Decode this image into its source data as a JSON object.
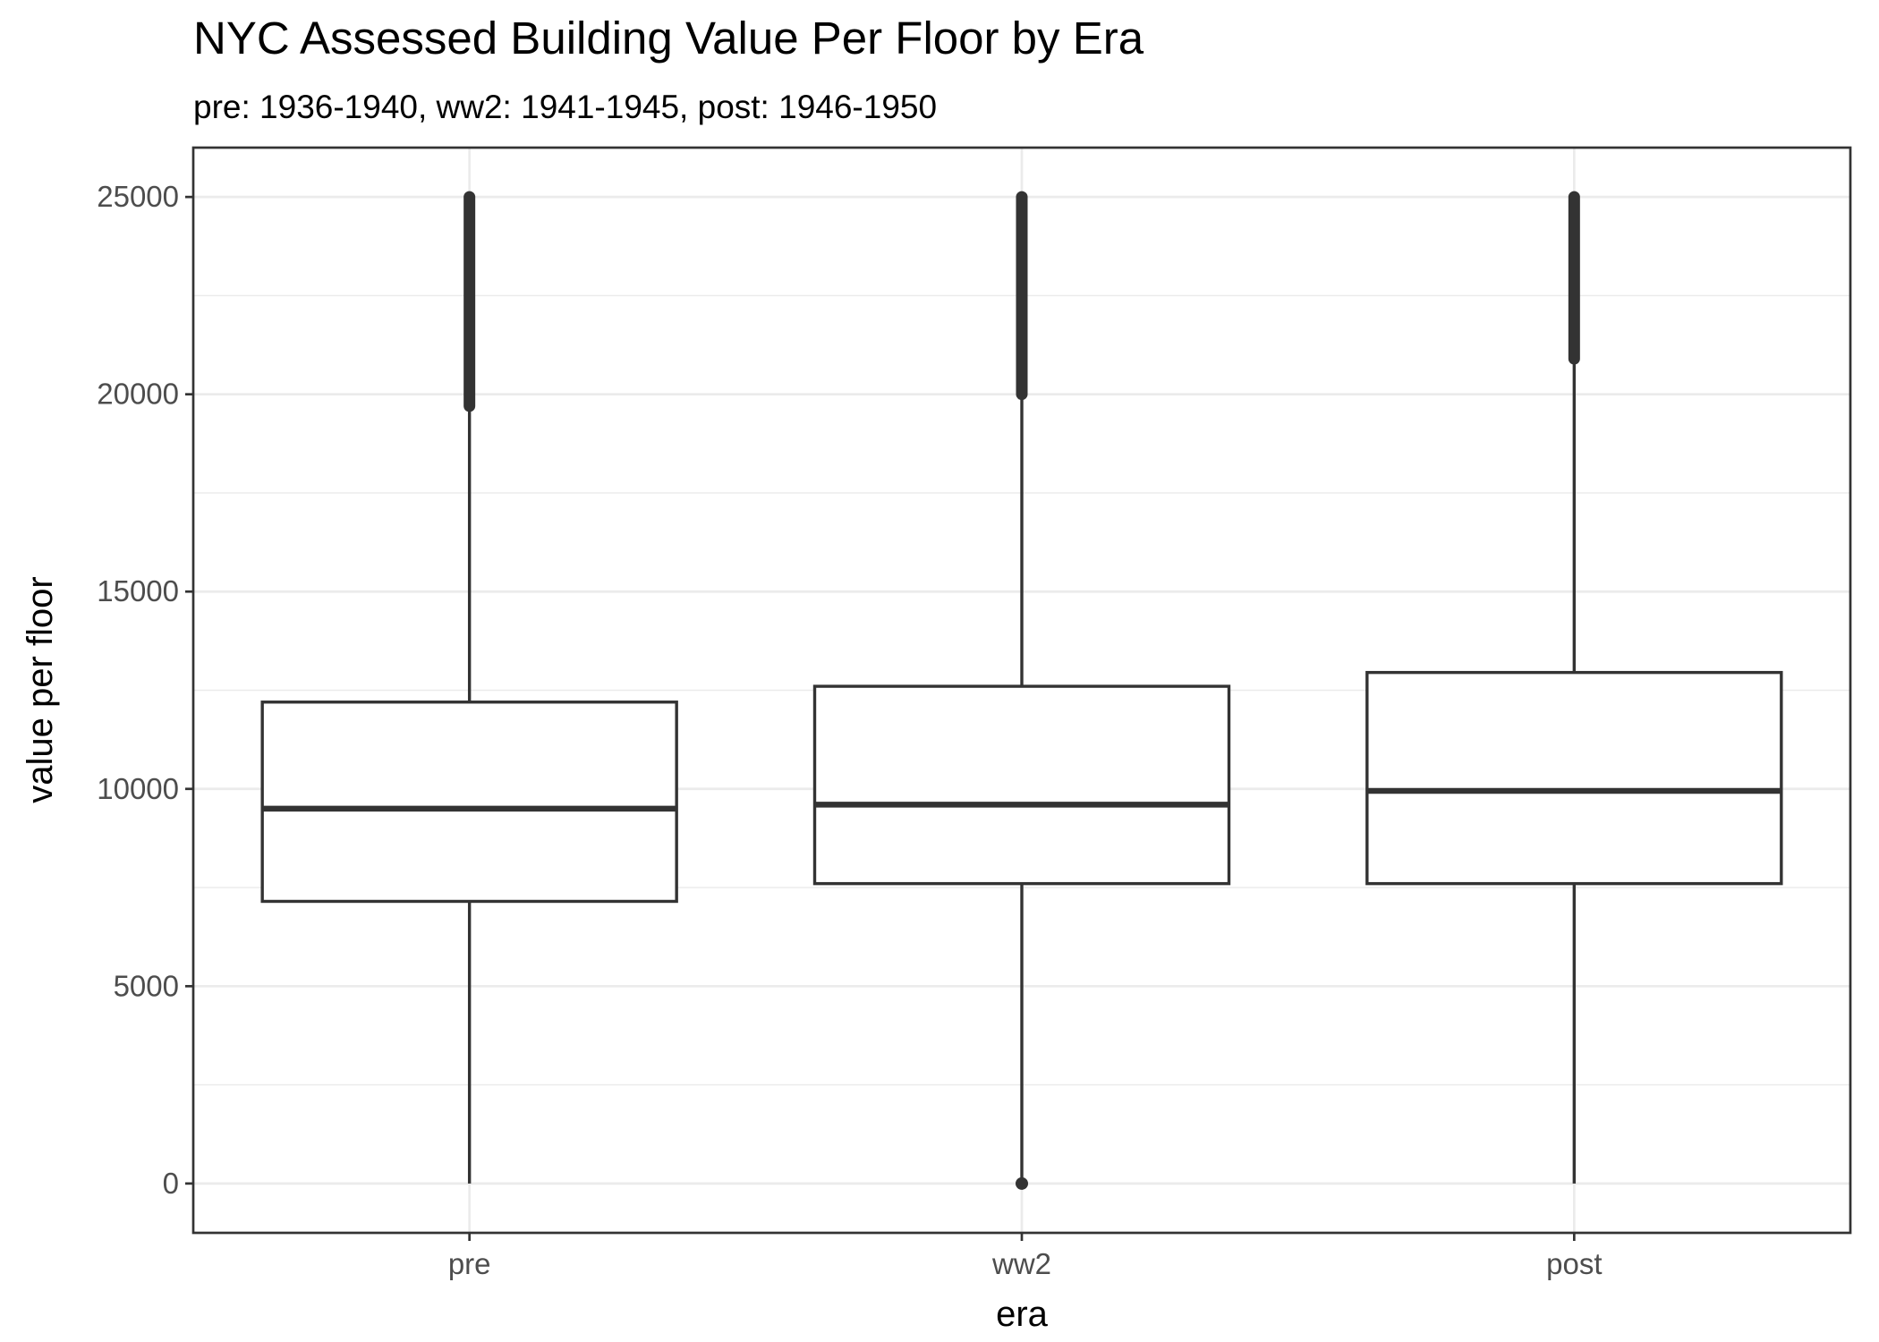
{
  "chart_data": {
    "type": "box",
    "title": "NYC Assessed Building Value Per Floor by Era",
    "subtitle": "pre: 1936-1940, ww2: 1941-1945, post: 1946-1950",
    "xlabel": "era",
    "ylabel": "value per floor",
    "ylim": [
      -1250,
      26250
    ],
    "yticks": [
      0,
      5000,
      10000,
      15000,
      20000,
      25000
    ],
    "grid": true,
    "categories": [
      "pre",
      "ww2",
      "post"
    ],
    "boxes": [
      {
        "category": "pre",
        "whisker_low": 0,
        "q1": 7150,
        "median": 9500,
        "q3": 12200,
        "whisker_high": 19700,
        "outliers_range": [
          19700,
          25000
        ]
      },
      {
        "category": "ww2",
        "whisker_low": 0,
        "q1": 7600,
        "median": 9600,
        "q3": 12600,
        "whisker_high": 20000,
        "outliers_range": [
          20000,
          25000
        ],
        "low_outliers": [
          0
        ]
      },
      {
        "category": "post",
        "whisker_low": 0,
        "q1": 7600,
        "median": 9950,
        "q3": 12950,
        "whisker_high": 20900,
        "outliers_range": [
          20900,
          25000
        ]
      }
    ],
    "colors": {
      "line": "#333333",
      "grid": "#ebebeb",
      "fill": "#ffffff",
      "tick_text": "#4d4d4d"
    }
  }
}
